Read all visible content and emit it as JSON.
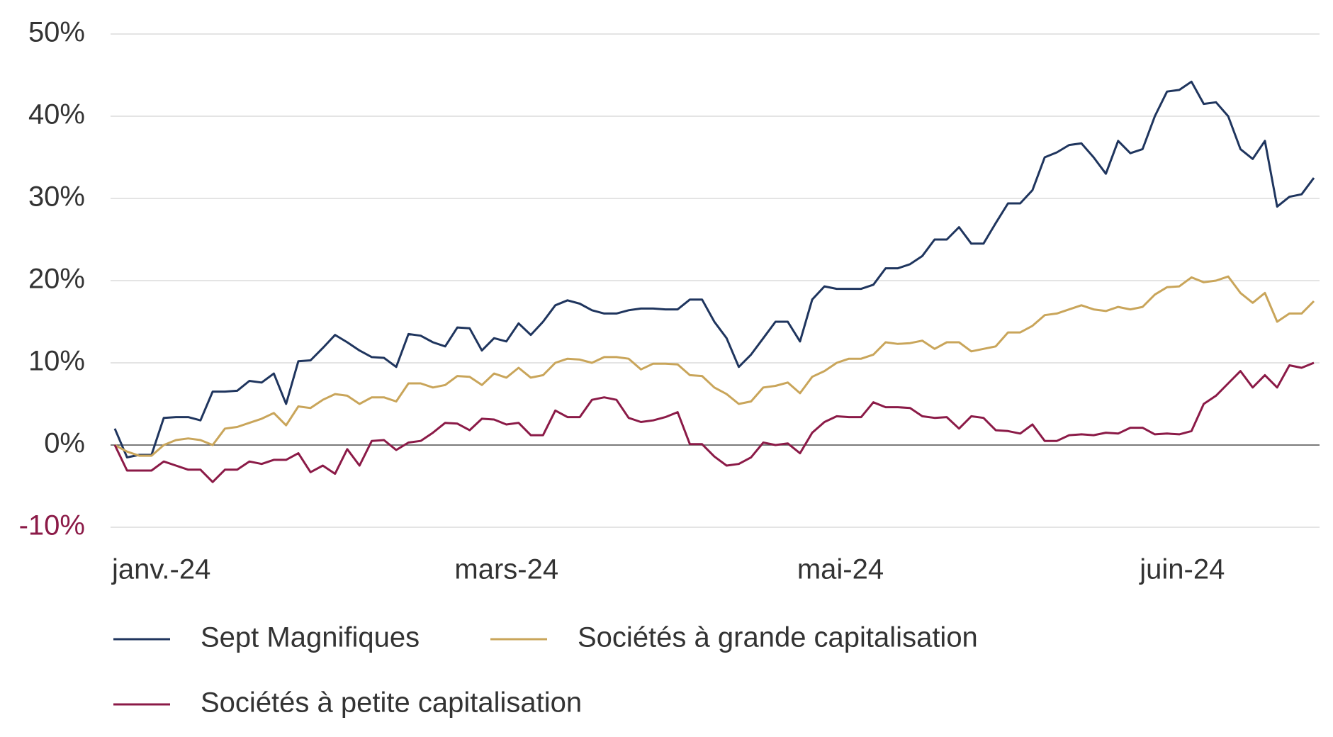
{
  "chart_data": {
    "type": "line",
    "categories": [
      "janv.-24",
      null,
      null,
      null,
      null,
      null,
      null,
      null,
      null,
      null,
      null,
      null,
      null,
      null,
      null,
      null,
      null,
      null,
      null,
      null,
      null,
      null,
      null,
      null,
      null,
      null,
      null,
      null,
      "mars-24",
      null,
      null,
      null,
      null,
      null,
      null,
      null,
      null,
      null,
      null,
      null,
      null,
      null,
      null,
      null,
      null,
      null,
      null,
      null,
      null,
      null,
      null,
      null,
      null,
      null,
      null,
      null,
      "mai-24",
      null,
      null,
      null,
      null,
      null,
      null,
      null,
      null,
      null,
      null,
      null,
      null,
      null,
      null,
      null,
      null,
      null,
      null,
      null,
      null,
      null,
      null,
      null,
      null,
      null,
      null,
      null,
      "juin-24",
      null,
      null,
      null,
      null,
      null,
      null,
      null,
      null,
      null,
      null,
      null,
      null,
      null,
      null
    ],
    "series": [
      {
        "name": "Sept Magnifiques",
        "color": "#1f355e",
        "values": [
          2,
          -1.5,
          -1.2,
          -1.2,
          3.3,
          3.4,
          3.4,
          3,
          6.5,
          6.5,
          6.6,
          7.8,
          7.6,
          8.7,
          5,
          10.2,
          10.3,
          11.8,
          13.4,
          12.5,
          11.5,
          10.7,
          10.6,
          9.5,
          13.5,
          13.3,
          12.5,
          12,
          14.3,
          14.2,
          11.5,
          13,
          12.6,
          14.8,
          13.4,
          15,
          17,
          17.6,
          17.2,
          16.4,
          16,
          16,
          16.4,
          16.6,
          16.6,
          16.5,
          16.5,
          17.7,
          17.7,
          15,
          13,
          9.5,
          11,
          13,
          15,
          15,
          12.6,
          17.7,
          19.3,
          19,
          19,
          19,
          19.5,
          21.5,
          21.5,
          22,
          23,
          25,
          25,
          26.5,
          24.5,
          24.5,
          27,
          29.4,
          29.4,
          31,
          35,
          35.6,
          36.5,
          36.7,
          35,
          33,
          37,
          35.5,
          36,
          40,
          43,
          43.2,
          44.2,
          41.5,
          41.7,
          40,
          36,
          34.8,
          37,
          29,
          30.2,
          30.5,
          32.5
        ]
      },
      {
        "name": "Sociétés à grande capitalisation",
        "color": "#c9a55a",
        "values": [
          0,
          -0.8,
          -1.3,
          -1.3,
          0,
          0.6,
          0.8,
          0.6,
          0,
          2,
          2.2,
          2.7,
          3.2,
          3.9,
          2.4,
          4.7,
          4.5,
          5.5,
          6.2,
          6,
          5,
          5.8,
          5.8,
          5.3,
          7.5,
          7.5,
          7,
          7.3,
          8.4,
          8.3,
          7.3,
          8.7,
          8.2,
          9.4,
          8.2,
          8.5,
          10,
          10.5,
          10.4,
          10,
          10.7,
          10.7,
          10.5,
          9.2,
          9.9,
          9.9,
          9.8,
          8.5,
          8.4,
          7,
          6.2,
          5,
          5.3,
          7,
          7.2,
          7.6,
          6.3,
          8.3,
          9,
          10,
          10.5,
          10.5,
          11,
          12.5,
          12.3,
          12.4,
          12.7,
          11.7,
          12.5,
          12.5,
          11.4,
          11.7,
          12,
          13.7,
          13.7,
          14.5,
          15.8,
          16,
          16.5,
          17,
          16.5,
          16.3,
          16.8,
          16.5,
          16.8,
          18.3,
          19.2,
          19.3,
          20.4,
          19.8,
          20,
          20.5,
          18.5,
          17.3,
          18.5,
          15,
          16,
          16,
          17.5
        ]
      },
      {
        "name": "Sociétés à petite capitalisation",
        "color": "#8b1a47",
        "values": [
          0,
          -3.1,
          -3.1,
          -3.1,
          -2,
          -2.5,
          -3,
          -3,
          -4.5,
          -3,
          -3,
          -2,
          -2.3,
          -1.8,
          -1.8,
          -1,
          -3.3,
          -2.5,
          -3.5,
          -0.5,
          -2.5,
          0.5,
          0.6,
          -0.6,
          0.3,
          0.5,
          1.5,
          2.7,
          2.6,
          1.8,
          3.2,
          3.1,
          2.5,
          2.7,
          1.2,
          1.2,
          4.2,
          3.4,
          3.4,
          5.5,
          5.8,
          5.5,
          3.3,
          2.8,
          3,
          3.4,
          4,
          0.1,
          0.1,
          -1.4,
          -2.5,
          -2.3,
          -1.5,
          0.3,
          0,
          0.2,
          -1,
          1.5,
          2.8,
          3.5,
          3.4,
          3.4,
          5.2,
          4.6,
          4.6,
          4.5,
          3.5,
          3.3,
          3.4,
          2,
          3.5,
          3.3,
          1.8,
          1.7,
          1.4,
          2.5,
          0.5,
          0.5,
          1.2,
          1.3,
          1.2,
          1.5,
          1.4,
          2.1,
          2.1,
          1.3,
          1.4,
          1.3,
          1.7,
          5,
          6,
          7.5,
          9,
          7,
          8.5,
          7,
          9.7,
          9.4,
          10
        ]
      }
    ],
    "ylim": [
      -10,
      50
    ],
    "yticks": [
      {
        "value": -10,
        "label": "-10%"
      },
      {
        "value": 0,
        "label": "0%"
      },
      {
        "value": 10,
        "label": "10%"
      },
      {
        "value": 20,
        "label": "20%"
      },
      {
        "value": 30,
        "label": "30%"
      },
      {
        "value": 40,
        "label": "40%"
      },
      {
        "value": 50,
        "label": "50%"
      }
    ],
    "grid": true,
    "negative_tick_color": "#8b1a47",
    "legend": "bottom"
  }
}
